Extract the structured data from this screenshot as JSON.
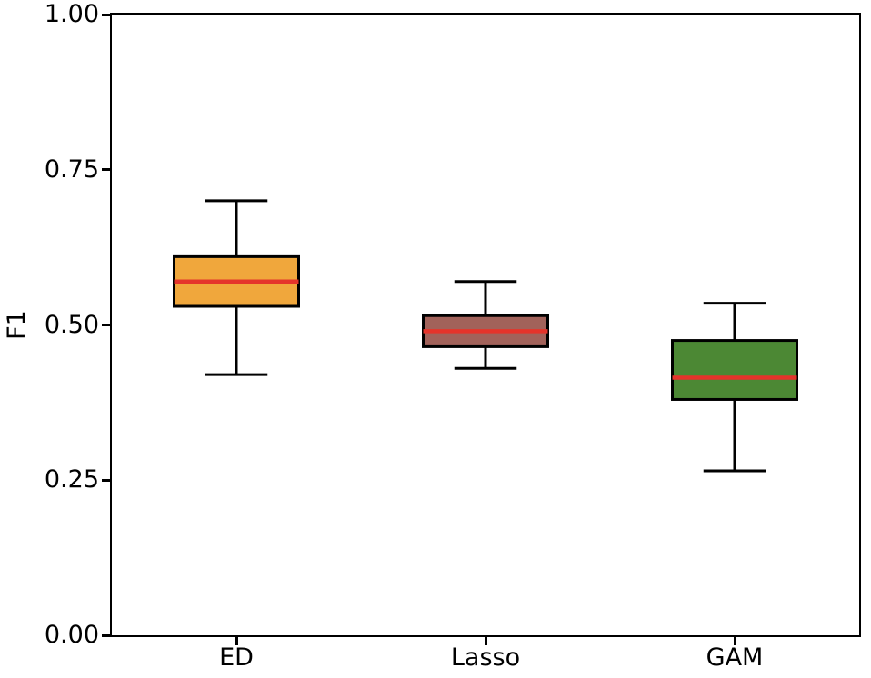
{
  "chart_data": {
    "type": "boxplot",
    "ylabel": "F1",
    "ylim": [
      0.0,
      1.0
    ],
    "yticks": {
      "values": [
        0.0,
        0.25,
        0.5,
        0.75,
        1.0
      ],
      "labels": [
        "0.00",
        "0.25",
        "0.50",
        "0.75",
        "1.00"
      ]
    },
    "categories": [
      "ED",
      "Lasso",
      "GAM"
    ],
    "boxes": [
      {
        "label": "ED",
        "whisker_low": 0.42,
        "q1": 0.53,
        "median": 0.57,
        "q3": 0.61,
        "whisker_high": 0.7,
        "fill_color": "#F0A73C"
      },
      {
        "label": "Lasso",
        "whisker_low": 0.43,
        "q1": 0.465,
        "median": 0.49,
        "q3": 0.515,
        "whisker_high": 0.57,
        "fill_color": "#A2625A"
      },
      {
        "label": "GAM",
        "whisker_low": 0.265,
        "q1": 0.38,
        "median": 0.415,
        "q3": 0.475,
        "whisker_high": 0.535,
        "fill_color": "#4C8834"
      }
    ],
    "style": {
      "median_color": "#E5342B",
      "edge_color": "#000000",
      "background": "#FFFFFF",
      "grid": false,
      "legend": "none"
    }
  }
}
